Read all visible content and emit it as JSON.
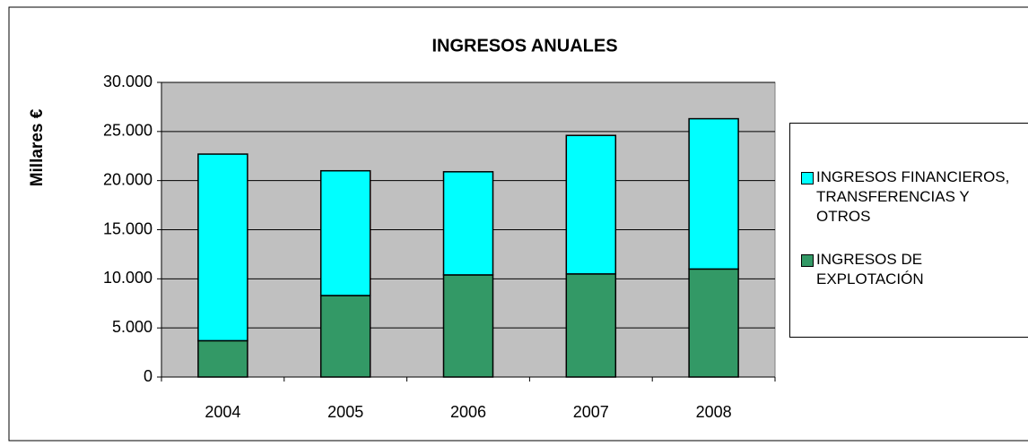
{
  "chart_data": {
    "type": "stacked_bar",
    "title": "INGRESOS ANUALES",
    "y_label": "Millares €",
    "categories": [
      "2004",
      "2005",
      "2006",
      "2007",
      "2008"
    ],
    "series": [
      {
        "name": "INGRESOS DE EXPLOTACIÓN",
        "color": "#339966",
        "values": [
          3700,
          8300,
          10400,
          10500,
          11000
        ]
      },
      {
        "name": "INGRESOS FINANCIEROS, TRANSFERENCIAS Y OTROS",
        "color": "#00ffff",
        "values": [
          19000,
          12700,
          10500,
          14100,
          15300
        ]
      }
    ],
    "ylim": [
      0,
      30000
    ],
    "yticks": [
      0,
      {
        "value": 5000,
        "label": "5.000"
      },
      {
        "value": 10000,
        "label": "10.000"
      },
      {
        "value": 15000,
        "label": "15.000"
      },
      {
        "value": 20000,
        "label": "20.000"
      },
      {
        "value": 25000,
        "label": "25.000"
      },
      {
        "value": 30000,
        "label": "30.000"
      }
    ],
    "grid": true,
    "legend": "right",
    "plot_background": "#c0c0c0"
  }
}
